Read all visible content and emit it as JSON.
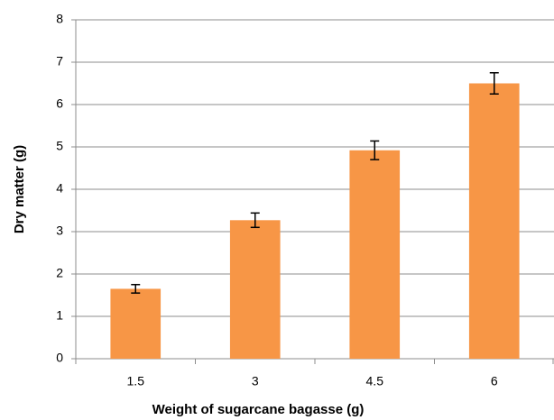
{
  "chart_data": {
    "type": "bar",
    "xlabel": "Weight of sugarcane bagasse (g)",
    "ylabel": "Dry matter (g)",
    "categories": [
      "1.5",
      "3",
      "4.5",
      "6"
    ],
    "values": [
      1.65,
      3.27,
      4.92,
      6.5
    ],
    "errors": [
      0.1,
      0.17,
      0.22,
      0.25
    ],
    "color": "#f79646",
    "ylim": [
      0,
      8
    ],
    "yticks": [
      0,
      1,
      2,
      3,
      4,
      5,
      6,
      7,
      8
    ],
    "grid": true
  }
}
